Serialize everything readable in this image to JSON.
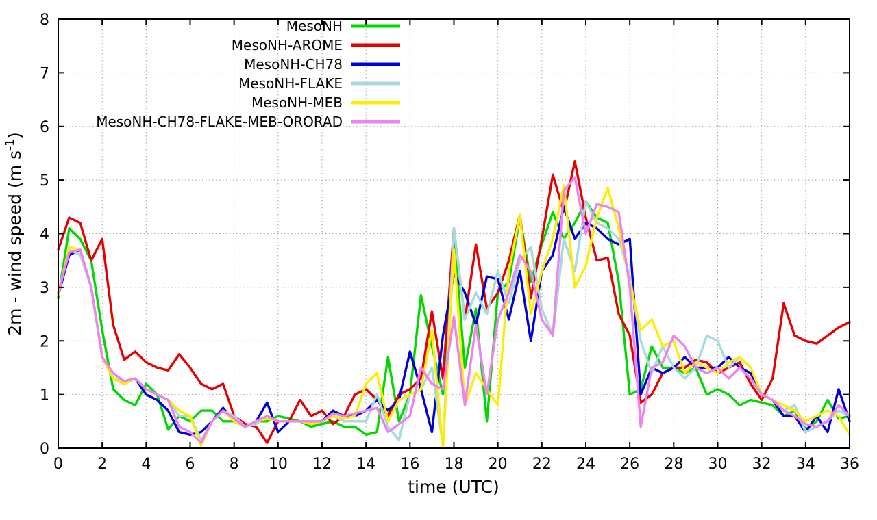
{
  "chart_data": {
    "type": "line",
    "title": "",
    "xlabel": "time (UTC)",
    "ylabel": "2m - wind speed (m s^-1)",
    "ylabel_parts": [
      "2m - wind speed  (m s",
      "-1",
      ")"
    ],
    "xlim": [
      0,
      36
    ],
    "ylim": [
      0,
      8
    ],
    "xticks": [
      0,
      2,
      4,
      6,
      8,
      10,
      12,
      14,
      16,
      18,
      20,
      22,
      24,
      26,
      28,
      30,
      32,
      34,
      36
    ],
    "yticks": [
      0,
      1,
      2,
      3,
      4,
      5,
      6,
      7,
      8
    ],
    "grid": true,
    "legend_position": "top-center-inside",
    "grid_color": "#9e9e9e",
    "axis_color": "#000000",
    "x": [
      0,
      0.5,
      1,
      1.5,
      2,
      2.5,
      3,
      3.5,
      4,
      4.5,
      5,
      5.5,
      6,
      6.5,
      7,
      7.5,
      8,
      8.5,
      9,
      9.5,
      10,
      10.5,
      11,
      11.5,
      12,
      12.5,
      13,
      13.5,
      14,
      14.5,
      15,
      15.5,
      16,
      16.5,
      17,
      17.5,
      18,
      18.5,
      19,
      19.5,
      20,
      20.5,
      21,
      21.5,
      22,
      22.5,
      23,
      23.5,
      24,
      24.5,
      25,
      25.5,
      26,
      26.5,
      27,
      27.5,
      28,
      28.5,
      29,
      29.5,
      30,
      30.5,
      31,
      31.5,
      32,
      32.5,
      33,
      33.5,
      34,
      34.5,
      35,
      35.5,
      36
    ],
    "series": [
      {
        "name": "MesoNH",
        "color": "#00d900",
        "values": [
          2.8,
          4.1,
          3.9,
          3.5,
          2.2,
          1.1,
          0.9,
          0.8,
          1.2,
          1.0,
          0.35,
          0.6,
          0.5,
          0.7,
          0.7,
          0.5,
          0.5,
          0.4,
          0.5,
          0.5,
          0.6,
          0.55,
          0.5,
          0.4,
          0.45,
          0.5,
          0.4,
          0.4,
          0.25,
          0.3,
          1.7,
          0.5,
          1.0,
          2.85,
          1.9,
          1.0,
          4.0,
          1.5,
          2.6,
          0.5,
          2.9,
          3.1,
          4.3,
          3.1,
          3.8,
          4.4,
          3.9,
          4.2,
          4.6,
          4.3,
          4.2,
          3.1,
          1.0,
          1.1,
          1.9,
          1.5,
          1.5,
          1.4,
          1.5,
          1.0,
          1.1,
          1.0,
          0.8,
          0.9,
          0.85,
          0.8,
          0.6,
          0.7,
          0.35,
          0.5,
          0.9,
          0.55,
          0.6
        ]
      },
      {
        "name": "MesoNH-AROME",
        "color": "#e60000",
        "values": [
          3.7,
          4.3,
          4.2,
          3.5,
          3.9,
          2.3,
          1.65,
          1.8,
          1.6,
          1.5,
          1.45,
          1.75,
          1.5,
          1.2,
          1.1,
          1.2,
          0.6,
          0.45,
          0.4,
          0.1,
          0.5,
          0.5,
          0.9,
          0.6,
          0.7,
          0.45,
          0.6,
          1.0,
          1.1,
          0.9,
          0.6,
          1.0,
          1.1,
          1.3,
          2.55,
          1.3,
          4.1,
          2.4,
          3.8,
          2.6,
          2.9,
          3.5,
          4.35,
          2.8,
          3.9,
          5.1,
          4.4,
          5.35,
          4.3,
          3.5,
          3.55,
          2.5,
          2.1,
          0.85,
          1.0,
          1.4,
          1.5,
          1.5,
          1.65,
          1.6,
          1.4,
          1.5,
          1.6,
          1.2,
          0.9,
          1.3,
          2.7,
          2.1,
          2.0,
          1.95,
          2.1,
          2.25,
          2.35
        ]
      },
      {
        "name": "MesoNH-CH78",
        "color": "#0000d9",
        "values": [
          2.85,
          3.6,
          3.7,
          3.0,
          1.7,
          1.3,
          1.2,
          1.3,
          1.0,
          0.9,
          0.7,
          0.3,
          0.25,
          0.3,
          0.5,
          0.75,
          0.5,
          0.4,
          0.5,
          0.85,
          0.3,
          0.5,
          0.5,
          0.45,
          0.5,
          0.7,
          0.6,
          0.6,
          0.7,
          0.9,
          0.7,
          0.9,
          1.8,
          1.1,
          0.3,
          2.1,
          3.25,
          2.9,
          2.3,
          3.2,
          3.15,
          2.4,
          3.3,
          2.0,
          3.3,
          3.6,
          4.5,
          3.9,
          4.2,
          4.1,
          3.9,
          3.8,
          3.9,
          1.0,
          1.5,
          1.4,
          1.5,
          1.7,
          1.5,
          1.5,
          1.5,
          1.7,
          1.5,
          1.4,
          1.0,
          0.9,
          0.6,
          0.6,
          0.3,
          0.6,
          0.3,
          1.1,
          0.5
        ]
      },
      {
        "name": "MesoNH-FLAKE",
        "color": "#a8d8e0",
        "values": [
          2.9,
          3.7,
          3.6,
          3.0,
          1.7,
          1.4,
          1.2,
          1.3,
          1.1,
          1.0,
          0.9,
          0.6,
          0.6,
          0.15,
          0.5,
          0.7,
          0.6,
          0.4,
          0.45,
          0.6,
          0.5,
          0.5,
          0.5,
          0.5,
          0.5,
          0.6,
          0.5,
          0.5,
          0.5,
          1.0,
          0.4,
          0.15,
          1.0,
          1.1,
          1.5,
          0.05,
          4.1,
          2.4,
          2.9,
          2.5,
          3.3,
          2.7,
          3.5,
          3.75,
          2.6,
          2.1,
          3.9,
          3.3,
          4.6,
          4.2,
          4.1,
          3.9,
          3.2,
          2.0,
          1.4,
          1.9,
          1.5,
          1.3,
          1.5,
          2.1,
          2.0,
          1.5,
          1.7,
          1.5,
          1.0,
          0.9,
          0.7,
          0.8,
          0.3,
          0.4,
          0.5,
          0.7,
          0.6
        ]
      },
      {
        "name": "MesoNH-MEB",
        "color": "#ffec00",
        "values": [
          2.85,
          3.75,
          3.7,
          3.0,
          1.7,
          1.3,
          1.2,
          1.3,
          1.1,
          1.0,
          0.9,
          0.7,
          0.6,
          0.05,
          0.5,
          0.7,
          0.5,
          0.4,
          0.5,
          0.55,
          0.5,
          0.5,
          0.5,
          0.45,
          0.5,
          0.6,
          0.55,
          0.6,
          1.2,
          1.4,
          0.5,
          0.9,
          1.0,
          1.1,
          2.2,
          0.0,
          3.7,
          0.8,
          1.4,
          1.1,
          0.8,
          3.3,
          4.35,
          2.5,
          3.3,
          3.9,
          4.9,
          3.0,
          3.4,
          4.3,
          4.85,
          4.1,
          3.1,
          2.2,
          2.4,
          1.9,
          2.0,
          1.4,
          1.6,
          1.5,
          1.4,
          1.6,
          1.7,
          1.5,
          1.0,
          0.9,
          0.8,
          0.7,
          0.5,
          0.6,
          0.7,
          0.6,
          0.25
        ]
      },
      {
        "name": "MesoNH-CH78-FLAKE-MEB-ORORAD",
        "color": "#ee82ee",
        "values": [
          2.9,
          3.65,
          3.7,
          3.0,
          1.7,
          1.4,
          1.25,
          1.3,
          1.1,
          1.0,
          0.9,
          0.4,
          0.3,
          0.1,
          0.5,
          0.7,
          0.55,
          0.4,
          0.5,
          0.6,
          0.5,
          0.5,
          0.5,
          0.5,
          0.5,
          0.65,
          0.6,
          0.65,
          0.7,
          0.75,
          0.3,
          0.45,
          0.6,
          1.5,
          1.2,
          1.1,
          2.45,
          0.8,
          2.3,
          1.0,
          2.4,
          2.9,
          3.6,
          3.3,
          2.4,
          2.1,
          4.8,
          5.05,
          4.0,
          4.55,
          4.5,
          4.4,
          3.0,
          0.4,
          1.5,
          1.6,
          2.1,
          1.9,
          1.5,
          1.4,
          1.5,
          1.3,
          1.5,
          1.3,
          1.0,
          0.9,
          0.7,
          0.6,
          0.45,
          0.4,
          0.5,
          0.8,
          0.6
        ]
      }
    ]
  }
}
